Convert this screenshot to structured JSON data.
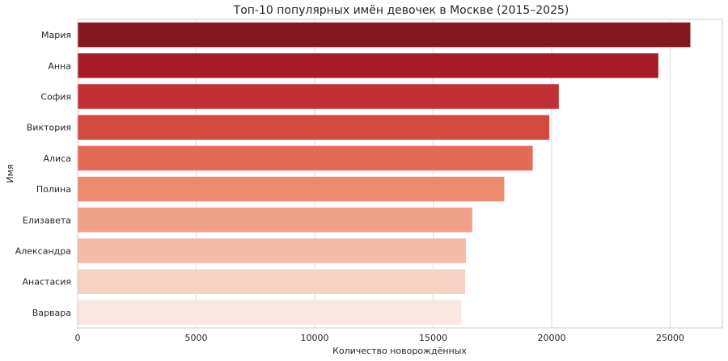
{
  "chart_data": {
    "type": "bar",
    "orientation": "horizontal",
    "title": "Топ-10 популярных имён девочек в Москве (2015–2025)",
    "xlabel": "Количество новорождённых",
    "ylabel": "Имя",
    "xlim": [
      0,
      27200
    ],
    "xticks": [
      0,
      5000,
      10000,
      15000,
      20000,
      25000
    ],
    "grid": true,
    "categories": [
      "Мария",
      "Анна",
      "София",
      "Виктория",
      "Алиса",
      "Полина",
      "Елизавета",
      "Александра",
      "Анастасия",
      "Варвара"
    ],
    "values": [
      25850,
      24500,
      20300,
      19900,
      19200,
      18000,
      16650,
      16380,
      16350,
      16180
    ],
    "colors": [
      "#84181e",
      "#a81d25",
      "#c13034",
      "#d44a3f",
      "#e46b55",
      "#ec8a6e",
      "#f0a086",
      "#f4bba6",
      "#f7d2c3",
      "#fae7df"
    ]
  }
}
